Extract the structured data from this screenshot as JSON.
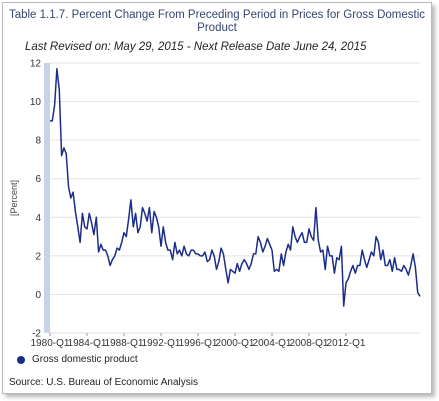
{
  "chart_data": {
    "type": "line",
    "title": "Table 1.1.7. Percent Change From Preceding Period in Prices for Gross Domestic Product",
    "subtitle": "Last Revised on: May 29, 2015 - Next Release Date June 24, 2015",
    "xlabel": "",
    "ylabel": "[Percent]",
    "ylim": [
      -2,
      12
    ],
    "yticks": [
      -2,
      0,
      2,
      4,
      6,
      8,
      10,
      12
    ],
    "x_start": "1980-Q1",
    "x_ticks": [
      "1980-Q1",
      "1984-Q1",
      "1988-Q1",
      "1992-Q1",
      "1996-Q1",
      "2000-Q1",
      "2004-Q1",
      "2008-Q1",
      "2012-Q1"
    ],
    "grid": true,
    "legend": "bottom-left",
    "series": [
      {
        "name": "Gross domestic product",
        "color": "#1b2c8a",
        "values": [
          9.0,
          9.0,
          9.8,
          11.7,
          10.6,
          7.2,
          7.6,
          7.3,
          5.6,
          5.0,
          5.3,
          4.3,
          3.5,
          2.7,
          4.2,
          3.5,
          3.4,
          4.2,
          3.7,
          3.1,
          4.0,
          2.2,
          2.6,
          2.3,
          2.3,
          2.0,
          1.5,
          1.8,
          2.0,
          2.4,
          2.3,
          2.7,
          3.2,
          3.0,
          3.9,
          4.9,
          3.5,
          4.2,
          3.2,
          3.5,
          4.5,
          4.2,
          3.8,
          4.5,
          3.2,
          4.3,
          4.0,
          3.5,
          2.5,
          3.5,
          2.7,
          2.3,
          2.3,
          1.8,
          2.7,
          2.1,
          2.3,
          2.0,
          2.5,
          2.1,
          2.0,
          2.3,
          2.3,
          2.1,
          2.1,
          2.0,
          2.0,
          2.2,
          1.7,
          1.8,
          2.3,
          2.0,
          1.3,
          1.7,
          2.4,
          2.1,
          1.3,
          0.6,
          1.3,
          1.2,
          1.1,
          1.6,
          1.2,
          1.6,
          1.8,
          1.6,
          1.3,
          1.6,
          2.1,
          2.1,
          3.0,
          2.7,
          2.2,
          2.5,
          2.9,
          2.6,
          2.3,
          1.2,
          1.3,
          1.2,
          2.1,
          1.5,
          2.2,
          2.6,
          2.3,
          3.5,
          3.0,
          2.7,
          3.0,
          3.2,
          2.7,
          2.7,
          3.4,
          3.0,
          2.8,
          4.5,
          2.8,
          2.2,
          2.3,
          1.3,
          2.5,
          2.0,
          2.0,
          1.1,
          1.9,
          1.8,
          2.5,
          -0.6,
          0.6,
          0.8,
          1.2,
          1.5,
          1.1,
          1.5,
          1.5,
          2.3,
          1.8,
          1.4,
          1.8,
          2.2,
          2.0,
          3.0,
          2.7,
          1.8,
          2.3,
          1.5,
          1.5,
          1.8,
          1.2,
          1.9,
          1.3,
          1.3,
          1.2,
          1.5,
          1.3,
          1.0,
          1.5,
          2.1,
          1.4,
          0.1,
          -0.1
        ]
      }
    ]
  },
  "source": "Source: U.S. Bureau of Economic  Analysis"
}
